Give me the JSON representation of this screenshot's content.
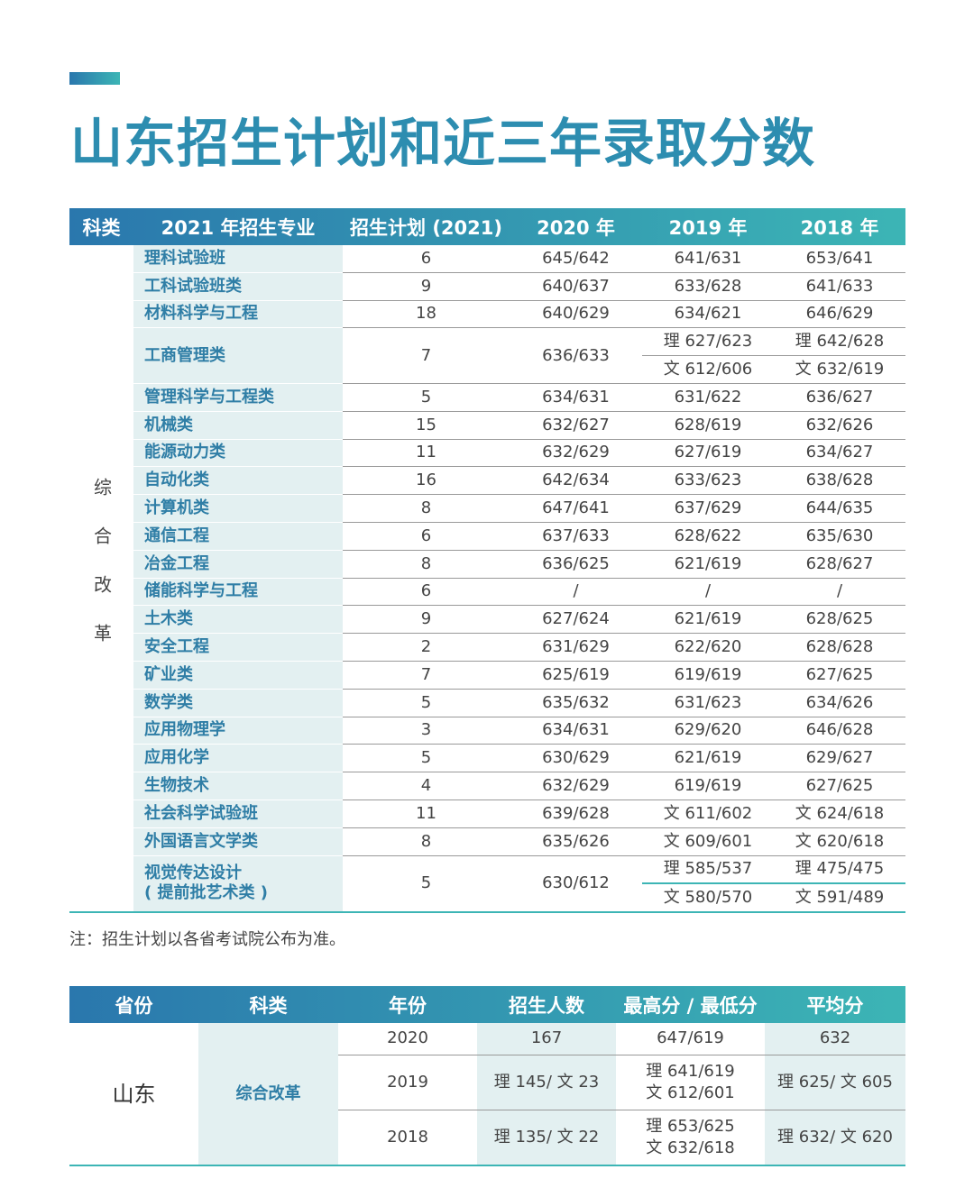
{
  "title": "山东招生计划和近三年录取分数",
  "table1": {
    "headers": [
      "科类",
      "2021 年招生专业",
      "招生计划 (2021)",
      "2020 年",
      "2019 年",
      "2018 年"
    ],
    "category": "综合改革",
    "rows": [
      [
        "理科试验班",
        "6",
        "645/642",
        "641/631",
        "653/641"
      ],
      [
        "工科试验班类",
        "9",
        "640/637",
        "633/628",
        "641/633"
      ],
      [
        "材料科学与工程",
        "18",
        "640/629",
        "634/621",
        "646/629"
      ],
      [
        "工商管理类",
        "7",
        "636/633",
        [
          "理 627/623",
          "文 612/606"
        ],
        [
          "理 642/628",
          "文 632/619"
        ]
      ],
      [
        "管理科学与工程类",
        "5",
        "634/631",
        "631/622",
        "636/627"
      ],
      [
        "机械类",
        "15",
        "632/627",
        "628/619",
        "632/626"
      ],
      [
        "能源动力类",
        "11",
        "632/629",
        "627/619",
        "634/627"
      ],
      [
        "自动化类",
        "16",
        "642/634",
        "633/623",
        "638/628"
      ],
      [
        "计算机类",
        "8",
        "647/641",
        "637/629",
        "644/635"
      ],
      [
        "通信工程",
        "6",
        "637/633",
        "628/622",
        "635/630"
      ],
      [
        "冶金工程",
        "8",
        "636/625",
        "621/619",
        "628/627"
      ],
      [
        "储能科学与工程",
        "6",
        "/",
        "/",
        "/"
      ],
      [
        "土木类",
        "9",
        "627/624",
        "621/619",
        "628/625"
      ],
      [
        "安全工程",
        "2",
        "631/629",
        "622/620",
        "628/628"
      ],
      [
        "矿业类",
        "7",
        "625/619",
        "619/619",
        "627/625"
      ],
      [
        "数学类",
        "5",
        "635/632",
        "631/623",
        "634/626"
      ],
      [
        "应用物理学",
        "3",
        "634/631",
        "629/620",
        "646/628"
      ],
      [
        "应用化学",
        "5",
        "630/629",
        "621/619",
        "629/627"
      ],
      [
        "生物技术",
        "4",
        "632/629",
        "619/619",
        "627/625"
      ],
      [
        "社会科学试验班",
        "11",
        "639/628",
        "文 611/602",
        "文 624/618"
      ],
      [
        "外国语言文学类",
        "8",
        "635/626",
        "文 609/601",
        "文 620/618"
      ],
      [
        [
          "视觉传达设计",
          "( 提前批艺术类 )"
        ],
        "5",
        "630/612",
        [
          "理 585/537",
          "文 580/570"
        ],
        [
          "理 475/475",
          "文 591/489"
        ]
      ]
    ]
  },
  "note": "注：招生计划以各省考试院公布为准。",
  "table2": {
    "headers": [
      "省份",
      "科类",
      "年份",
      "招生人数",
      "最高分 / 最低分",
      "平均分"
    ],
    "province": "山东",
    "category": "综合改革",
    "rows": [
      [
        "2020",
        "167",
        "647/619",
        "632"
      ],
      [
        "2019",
        "理 145/ 文 23",
        [
          "理 641/619",
          "文 612/601"
        ],
        "理 625/ 文 605"
      ],
      [
        "2018",
        "理 135/ 文 22",
        [
          "理 653/625",
          "文 632/618"
        ],
        "理 632/ 文 620"
      ]
    ]
  }
}
